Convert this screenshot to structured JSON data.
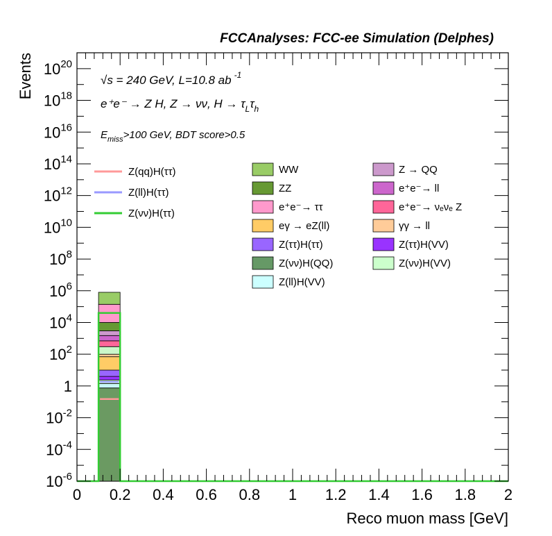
{
  "chart_data": {
    "type": "bar",
    "title": "FCCAnalyses: FCC-ee Simulation (Delphes)",
    "annotations": {
      "sqrt_s": "√s = 240 GeV, L=10.8 ab",
      "lumi_exp": "-1",
      "process": "e⁺e⁻ → Z H, Z → νν, H → τ",
      "process_sub1": "L",
      "process_tail": "τ",
      "process_sub2": "h",
      "cut_e": "E",
      "cut_sub": "miss",
      "cut_rest": ">100 GeV, BDT score>0.5"
    },
    "xlabel": "Reco muon mass [GeV]",
    "ylabel": "Events",
    "xlim": [
      0,
      2
    ],
    "ylim": [
      1e-06,
      1e+21
    ],
    "log_y": true,
    "x_ticks": [
      "0",
      "0.2",
      "0.4",
      "0.6",
      "0.8",
      "1",
      "1.2",
      "1.4",
      "1.6",
      "1.8",
      "2"
    ],
    "y_ticks": [
      {
        "base": "10",
        "exp": "20"
      },
      {
        "base": "10",
        "exp": "18"
      },
      {
        "base": "10",
        "exp": "16"
      },
      {
        "base": "10",
        "exp": "14"
      },
      {
        "base": "10",
        "exp": "12"
      },
      {
        "base": "10",
        "exp": "10"
      },
      {
        "base": "10",
        "exp": "8"
      },
      {
        "base": "10",
        "exp": "6"
      },
      {
        "base": "10",
        "exp": "4"
      },
      {
        "base": "10",
        "exp": "2"
      },
      {
        "base": "1",
        "exp": ""
      },
      {
        "base": "10",
        "exp": "-2"
      },
      {
        "base": "10",
        "exp": "-4"
      },
      {
        "base": "10",
        "exp": "-6"
      }
    ],
    "bin": [
      0.1,
      0.2
    ],
    "stack_boundaries": [
      {
        "name": "Z(νν)H(QQ)",
        "color": "#6b9a62",
        "top": 0.75
      },
      {
        "name": "Z(ll)H(VV)",
        "color": "#c7f7f7",
        "top": 1.4
      },
      {
        "name": "Z(νν)H(VV)",
        "color": "#cff7c9",
        "top": 2.4
      },
      {
        "name": "Z(ττ)H(VV)",
        "color": "#9933ff",
        "top": 4.0
      },
      {
        "name": "Z(ττ)H(ττ)",
        "color": "#9966ff",
        "top": 10.0
      },
      {
        "name": "eγ → eZ(ll)",
        "color": "#ffcc66",
        "top": 70.0
      },
      {
        "name": "γγ → ll",
        "color": "#ffcc99",
        "top": 100.0
      },
      {
        "name": "Z(νν)H(VV) ",
        "color": "#ccf7c9",
        "top": 300.0
      },
      {
        "name": "e⁺e⁻ → νₑνₑ Z",
        "color": "#ff6699",
        "top": 700.0
      },
      {
        "name": "e⁺e⁻ → ll",
        "color": "#cc66cc",
        "top": 1500.0
      },
      {
        "name": "Z → QQ",
        "color": "#cc99cc",
        "top": 3000.0
      },
      {
        "name": "ZZ",
        "color": "#669933",
        "top": 10000.0
      },
      {
        "name": "e⁺e⁻ → ττ",
        "color": "#ff99cc",
        "top": 140000.0
      },
      {
        "name": "WW",
        "color": "#99cc66",
        "top": 800000.0
      }
    ],
    "signal_lines": [
      {
        "name": "Z(qq)H(ττ)",
        "color": "#ff9999",
        "value": 0.15
      },
      {
        "name": "Z(ll)H(ττ)",
        "color": "#9999ff",
        "value": 1.8
      },
      {
        "name": "Z(νν)H(ττ)",
        "color": "#33cc33",
        "value": 40000.0
      }
    ],
    "legend_signals": [
      {
        "label": "Z(qq)H(ττ)",
        "color": "#ff9999"
      },
      {
        "label": "Z(ll)H(ττ)",
        "color": "#9999ff"
      },
      {
        "label": "Z(νν)H(ττ)",
        "color": "#33cc33"
      }
    ],
    "legend_bkg_col1": [
      {
        "label": "WW",
        "color": "#99cc66"
      },
      {
        "label": "ZZ",
        "color": "#669933"
      },
      {
        "label": "e⁺e⁻→ ττ",
        "color": "#ff99cc"
      },
      {
        "label": "eγ → eZ(ll)",
        "color": "#ffcc66"
      },
      {
        "label": "Z(ττ)H(ττ)",
        "color": "#9966ff"
      },
      {
        "label": "Z(νν)H(QQ)",
        "color": "#669966"
      },
      {
        "label": "Z(ll)H(VV)",
        "color": "#ccffff"
      }
    ],
    "legend_bkg_col2": [
      {
        "label": "Z → QQ",
        "color": "#cc99cc"
      },
      {
        "label": "e⁺e⁻→ ll",
        "color": "#cc66cc"
      },
      {
        "label": "e⁺e⁻→ νₑνₑ Z",
        "color": "#ff6699"
      },
      {
        "label": "γγ → ll",
        "color": "#ffcc99"
      },
      {
        "label": "Z(ττ)H(VV)",
        "color": "#9933ff"
      },
      {
        "label": "Z(νν)H(VV)",
        "color": "#ccffcc"
      }
    ]
  }
}
